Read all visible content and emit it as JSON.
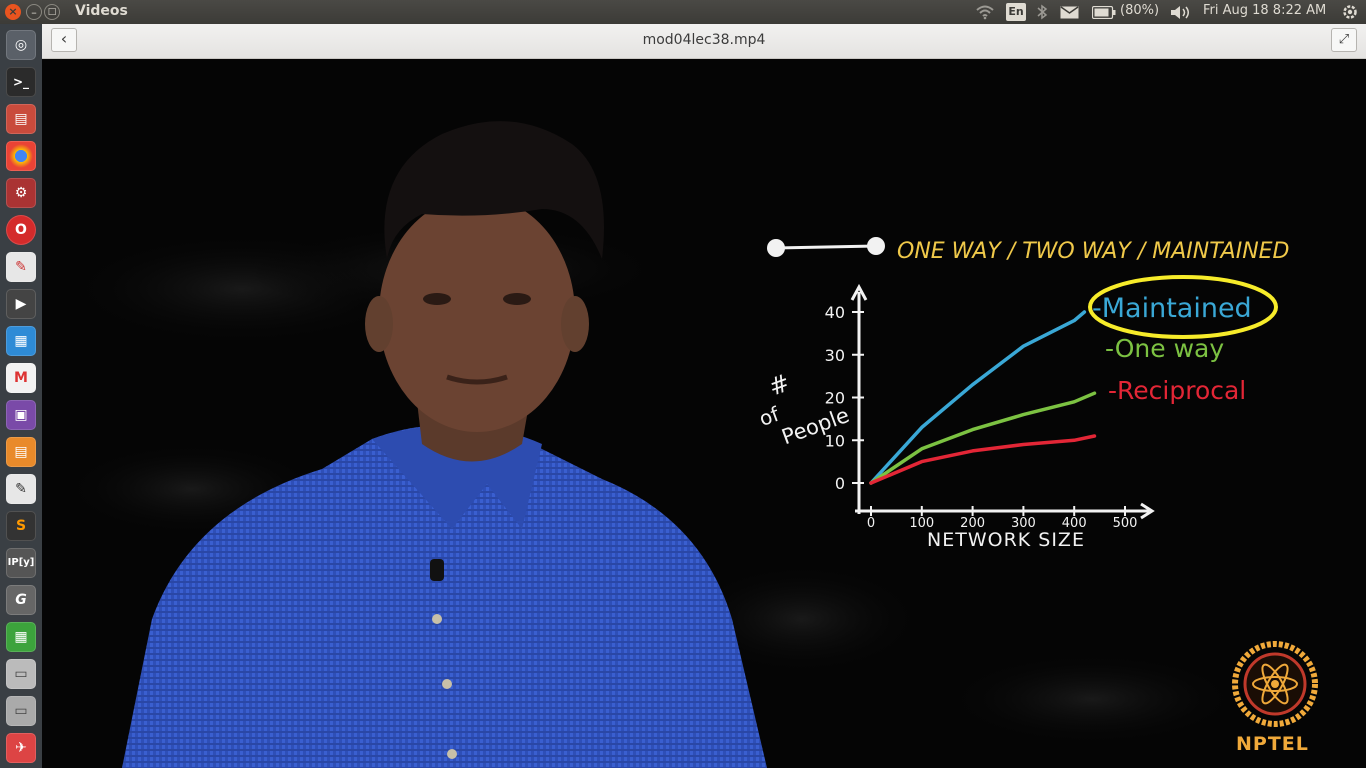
{
  "topbar": {
    "app_title": "Videos",
    "keyboard_layout": "En",
    "battery": "(80%)",
    "datetime": "Fri Aug 18  8:22 AM",
    "icons": [
      "wifi-icon",
      "keyboard-icon",
      "bluetooth-icon",
      "mail-icon",
      "battery-icon",
      "volume-icon",
      "settings-gear-icon"
    ]
  },
  "window": {
    "close": "×",
    "minimize": "–",
    "maximize": "□"
  },
  "headerbar": {
    "back": "‹",
    "file_title": "mod04lec38.mp4",
    "fullscreen": "⤢"
  },
  "launcher": {
    "items": [
      "dash",
      "terminal",
      "files",
      "chrome",
      "settings",
      "opera",
      "evince",
      "video",
      "writer",
      "gmail",
      "media",
      "impress",
      "text-editor",
      "sublime",
      "ipython",
      "gimp",
      "calc",
      "drive",
      "drive2",
      "installer",
      "disk"
    ]
  },
  "video": {
    "board_title": "ONE WAY / TWO WAY / MAINTAINED",
    "y_label_1": "#",
    "y_label_2": "of",
    "y_label_3": "People",
    "x_label": "NETWORK  SIZE",
    "legend": [
      {
        "label": "-Maintained",
        "color": "#3aa8d6"
      },
      {
        "label": "-One way",
        "color": "#7cc242"
      },
      {
        "label": "-Reciprocal",
        "color": "#e32636"
      }
    ],
    "logo_text": "NPTEL"
  },
  "chart_data": {
    "type": "line",
    "xlabel": "NETWORK SIZE",
    "ylabel": "# of People",
    "x_ticks": [
      "0",
      "100",
      "200",
      "300",
      "400",
      "500"
    ],
    "y_ticks": [
      "0",
      "10",
      "20",
      "30",
      "40"
    ],
    "xlim": [
      0,
      500
    ],
    "ylim": [
      0,
      40
    ],
    "series": [
      {
        "name": "Maintained",
        "color": "#3aa8d6",
        "x": [
          0,
          100,
          200,
          300,
          400,
          420
        ],
        "y": [
          0,
          13,
          23,
          32,
          38,
          40
        ]
      },
      {
        "name": "One way",
        "color": "#7cc242",
        "x": [
          0,
          100,
          200,
          300,
          400,
          440
        ],
        "y": [
          0,
          8,
          12.5,
          16,
          19,
          21
        ]
      },
      {
        "name": "Reciprocal",
        "color": "#e32636",
        "x": [
          0,
          100,
          200,
          300,
          400,
          440
        ],
        "y": [
          0,
          5,
          7.5,
          9,
          10,
          11
        ]
      }
    ]
  }
}
